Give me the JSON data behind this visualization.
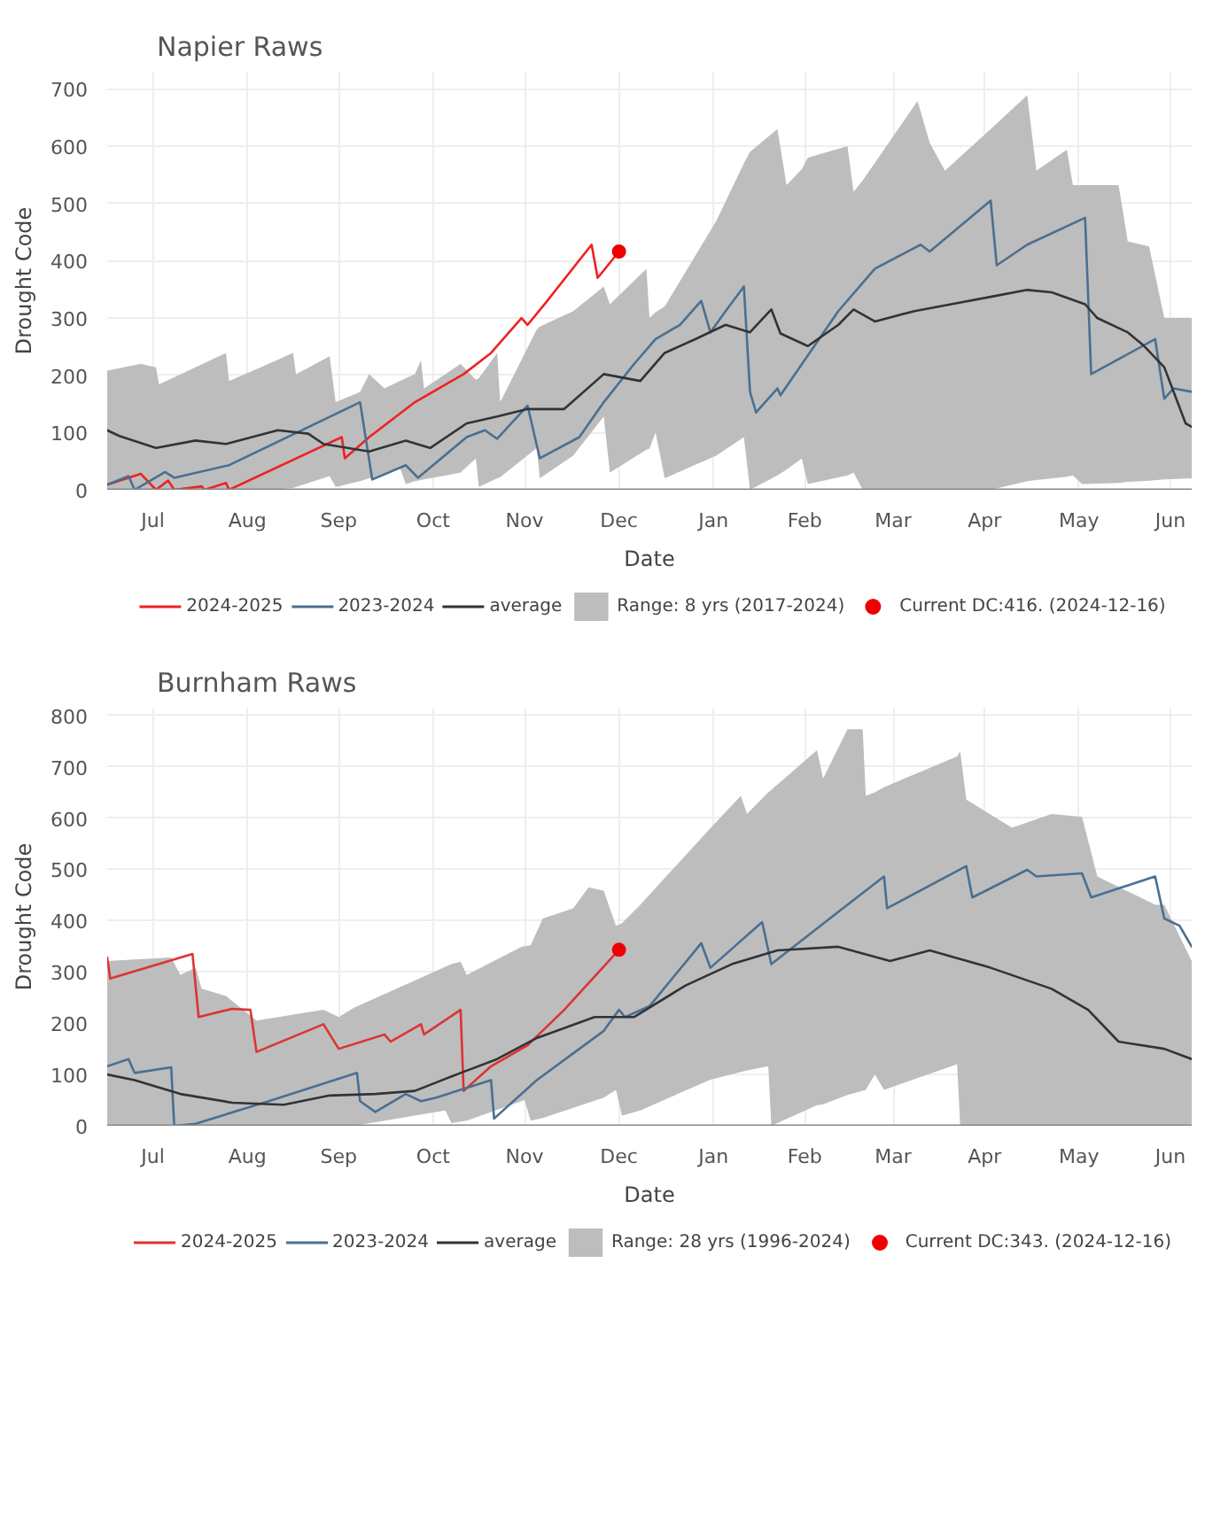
{
  "chart_data": [
    {
      "type": "line",
      "title": "Napier Raws",
      "xlabel": "Date",
      "ylabel": "Drought Code",
      "xlim": [
        "2024-07-01",
        "2025-06-22"
      ],
      "ylim": [
        0,
        730
      ],
      "yticks": [
        0,
        100,
        200,
        300,
        400,
        500,
        600,
        700
      ],
      "xticks": [
        {
          "value": "2024-07-16",
          "label": "Jul"
        },
        {
          "value": "2024-08-16",
          "label": "Aug"
        },
        {
          "value": "2024-09-15",
          "label": "Sep"
        },
        {
          "value": "2024-10-16",
          "label": "Oct"
        },
        {
          "value": "2024-11-15",
          "label": "Nov"
        },
        {
          "value": "2024-12-16",
          "label": "Dec"
        },
        {
          "value": "2025-01-16",
          "label": "Jan"
        },
        {
          "value": "2025-02-15",
          "label": "Feb"
        },
        {
          "value": "2025-03-16",
          "label": "Mar"
        },
        {
          "value": "2025-04-15",
          "label": "Apr"
        },
        {
          "value": "2025-05-16",
          "label": "May"
        },
        {
          "value": "2025-06-15",
          "label": "Jun"
        }
      ],
      "grid": true,
      "legend": "bottom",
      "line_style": "solid",
      "series": [
        {
          "name": "2024-2025",
          "type": "line",
          "color": "#ee2222",
          "x": [
            "2024-07-01",
            "2024-07-12",
            "2024-07-17",
            "2024-07-21",
            "2024-07-23",
            "2024-08-01",
            "2024-08-02",
            "2024-08-09",
            "2024-08-10",
            "2024-09-16",
            "2024-09-17",
            "2024-09-25",
            "2024-10-10",
            "2024-10-26",
            "2024-11-04",
            "2024-11-14",
            "2024-11-16",
            "2024-11-22",
            "2024-12-07",
            "2024-12-09",
            "2024-12-16"
          ],
          "values": [
            9,
            28,
            0,
            16,
            0,
            6,
            0,
            12,
            0,
            92,
            55,
            92,
            153,
            202,
            239,
            300,
            288,
            327,
            428,
            370,
            416
          ]
        },
        {
          "name": "2023-2024",
          "type": "line",
          "color": "#4a6f91",
          "x": [
            "2024-07-01",
            "2024-07-08",
            "2024-07-10",
            "2024-07-20",
            "2024-07-23",
            "2024-08-10",
            "2024-09-22",
            "2024-09-26",
            "2024-10-07",
            "2024-10-11",
            "2024-10-27",
            "2024-11-02",
            "2024-11-06",
            "2024-11-16",
            "2024-11-20",
            "2024-12-03",
            "2024-12-11",
            "2024-12-21",
            "2024-12-28",
            "2025-01-05",
            "2025-01-12",
            "2025-01-15",
            "2025-01-20",
            "2025-01-26",
            "2025-01-28",
            "2025-01-30",
            "2025-02-06",
            "2025-02-07",
            "2025-02-26",
            "2025-03-10",
            "2025-03-25",
            "2025-03-28",
            "2025-04-17",
            "2025-04-19",
            "2025-04-29",
            "2025-05-18",
            "2025-05-20",
            "2025-06-10",
            "2025-06-13",
            "2025-06-16",
            "2025-06-22"
          ],
          "values": [
            9,
            24,
            0,
            31,
            21,
            43,
            153,
            18,
            43,
            21,
            92,
            104,
            89,
            147,
            55,
            92,
            153,
            220,
            263,
            288,
            330,
            275,
            312,
            355,
            171,
            135,
            177,
            165,
            312,
            386,
            428,
            416,
            505,
            392,
            428,
            475,
            202,
            263,
            159,
            177,
            171
          ]
        },
        {
          "name": "average",
          "type": "line",
          "color": "#333333",
          "x": [
            "2024-07-01",
            "2024-07-05",
            "2024-07-17",
            "2024-07-30",
            "2024-08-09",
            "2024-08-26",
            "2024-09-05",
            "2024-09-10",
            "2024-09-25",
            "2024-10-07",
            "2024-10-15",
            "2024-10-27",
            "2024-11-06",
            "2024-11-16",
            "2024-11-28",
            "2024-12-11",
            "2024-12-23",
            "2024-12-31",
            "2025-01-10",
            "2025-01-20",
            "2025-01-28",
            "2025-02-04",
            "2025-02-07",
            "2025-02-16",
            "2025-02-26",
            "2025-03-03",
            "2025-03-10",
            "2025-03-23",
            "2025-04-04",
            "2025-04-17",
            "2025-04-29",
            "2025-05-07",
            "2025-05-18",
            "2025-05-22",
            "2025-06-01",
            "2025-06-06",
            "2025-06-13",
            "2025-06-20",
            "2025-06-22"
          ],
          "values": [
            104,
            94,
            73,
            86,
            80,
            104,
            98,
            80,
            67,
            86,
            73,
            116,
            128,
            141,
            141,
            202,
            190,
            239,
            263,
            288,
            275,
            315,
            273,
            251,
            288,
            315,
            294,
            312,
            324,
            337,
            349,
            345,
            324,
            300,
            275,
            253,
            214,
            116,
            110
          ]
        },
        {
          "name": "Range: 8 yrs\n(2017-2024)",
          "type": "area",
          "color": "#bdbdbd",
          "x": [
            "2024-07-01",
            "2024-07-12",
            "2024-07-17",
            "2024-07-18",
            "2024-08-09",
            "2024-08-10",
            "2024-08-23",
            "2024-08-31",
            "2024-09-01",
            "2024-09-12",
            "2024-09-14",
            "2024-09-22",
            "2024-09-25",
            "2024-09-30",
            "2024-10-05",
            "2024-10-07",
            "2024-10-10",
            "2024-10-12",
            "2024-10-13",
            "2024-10-25",
            "2024-10-30",
            "2024-10-31",
            "2024-11-06",
            "2024-11-07",
            "2024-11-19",
            "2024-11-20",
            "2024-12-01",
            "2024-12-11",
            "2024-12-13",
            "2024-12-25",
            "2024-12-26",
            "2024-12-28",
            "2024-12-31",
            "2025-01-17",
            "2025-01-26",
            "2025-01-28",
            "2025-02-06",
            "2025-02-09",
            "2025-02-14",
            "2025-02-16",
            "2025-03-01",
            "2025-03-03",
            "2025-03-06",
            "2025-03-24",
            "2025-03-28",
            "2025-04-02",
            "2025-04-17",
            "2025-04-29",
            "2025-05-02",
            "2025-05-12",
            "2025-05-14",
            "2025-05-17",
            "2025-05-29",
            "2025-06-01",
            "2025-06-08",
            "2025-06-13",
            "2025-06-22"
          ],
          "values": [
            null,
            null,
            null,
            null,
            null,
            null,
            null,
            null,
            null,
            null,
            null,
            null,
            null,
            null,
            null,
            null,
            null,
            null,
            null,
            null,
            null,
            null,
            null,
            null,
            null,
            null,
            null,
            null,
            null,
            null,
            null,
            null,
            null,
            null,
            null,
            null,
            null,
            null,
            null,
            null,
            null,
            null,
            null,
            null,
            null,
            null,
            null,
            null,
            null,
            null,
            null,
            null,
            null,
            null,
            null,
            null,
            null
          ],
          "lower": [
            0,
            0,
            0,
            0,
            0,
            0,
            0,
            3,
            5,
            24,
            5,
            15,
            20,
            25,
            40,
            10,
            15,
            17,
            18,
            30,
            55,
            5,
            20,
            22,
            73,
            20,
            60,
            128,
            30,
            70,
            72,
            100,
            20,
            60,
            92,
            0,
            25,
            35,
            55,
            10,
            25,
            30,
            0,
            0,
            0,
            0,
            0,
            15,
            17,
            23,
            25,
            10,
            12,
            14,
            16,
            18,
            20
          ],
          "upper": [
            208,
            220,
            214,
            184,
            239,
            190,
            220,
            239,
            202,
            233,
            153,
            171,
            202,
            177,
            190,
            195,
            202,
            226,
            177,
            220,
            192,
            195,
            239,
            153,
            280,
            285,
            312,
            355,
            324,
            386,
            300,
            310,
            320,
            470,
            570,
            590,
            630,
            532,
            560,
            580,
            600,
            520,
            540,
            679,
            606,
            557,
            630,
            689,
            557,
            594,
            532,
            532,
            532,
            434,
            425,
            300,
            300
          ]
        },
        {
          "name": "Current DC:416.\n(2024-12-16)",
          "type": "scatter",
          "marker": "circle",
          "color": "#ee0000",
          "x": [
            "2024-12-16"
          ],
          "values": [
            416
          ]
        }
      ]
    },
    {
      "type": "line",
      "title": "Burnham Raws",
      "xlabel": "Date",
      "ylabel": "Drought Code",
      "xlim": [
        "2024-07-01",
        "2025-06-22"
      ],
      "ylim": [
        0,
        815
      ],
      "yticks": [
        0,
        100,
        200,
        300,
        400,
        500,
        600,
        700,
        800
      ],
      "xticks": [
        {
          "value": "2024-07-16",
          "label": "Jul"
        },
        {
          "value": "2024-08-16",
          "label": "Aug"
        },
        {
          "value": "2024-09-15",
          "label": "Sep"
        },
        {
          "value": "2024-10-16",
          "label": "Oct"
        },
        {
          "value": "2024-11-15",
          "label": "Nov"
        },
        {
          "value": "2024-12-16",
          "label": "Dec"
        },
        {
          "value": "2025-01-16",
          "label": "Jan"
        },
        {
          "value": "2025-02-15",
          "label": "Feb"
        },
        {
          "value": "2025-03-16",
          "label": "Mar"
        },
        {
          "value": "2025-04-15",
          "label": "Apr"
        },
        {
          "value": "2025-05-16",
          "label": "May"
        },
        {
          "value": "2025-06-15",
          "label": "Jun"
        }
      ],
      "grid": true,
      "legend": "bottom",
      "line_style": "solid",
      "series": [
        {
          "name": "2024-2025",
          "type": "line",
          "color": "#dd3333",
          "x": [
            "2024-07-01",
            "2024-07-02",
            "2024-07-29",
            "2024-07-31",
            "2024-08-11",
            "2024-08-17",
            "2024-08-19",
            "2024-09-10",
            "2024-09-15",
            "2024-09-30",
            "2024-10-02",
            "2024-10-12",
            "2024-10-13",
            "2024-10-25",
            "2024-10-26",
            "2024-11-04",
            "2024-11-16",
            "2024-11-28",
            "2024-12-16"
          ],
          "values": [
            328,
            287,
            335,
            212,
            228,
            226,
            144,
            198,
            150,
            178,
            164,
            198,
            178,
            226,
            68,
            116,
            157,
            226,
            343
          ]
        },
        {
          "name": "2023-2024",
          "type": "line",
          "color": "#4a6f91",
          "x": [
            "2024-07-01",
            "2024-07-08",
            "2024-07-10",
            "2024-07-22",
            "2024-07-23",
            "2024-07-30",
            "2024-08-23",
            "2024-09-21",
            "2024-09-22",
            "2024-09-27",
            "2024-10-07",
            "2024-10-12",
            "2024-10-17",
            "2024-11-04",
            "2024-11-05",
            "2024-11-19",
            "2024-12-03",
            "2024-12-11",
            "2024-12-16",
            "2024-12-18",
            "2024-12-26",
            "2025-01-12",
            "2025-01-15",
            "2025-02-01",
            "2025-02-04",
            "2025-02-26",
            "2025-03-13",
            "2025-03-14",
            "2025-04-09",
            "2025-04-11",
            "2025-04-29",
            "2025-05-02",
            "2025-05-17",
            "2025-05-20",
            "2025-06-10",
            "2025-06-13",
            "2025-06-18",
            "2025-06-22"
          ],
          "values": [
            116,
            130,
            103,
            114,
            0,
            4,
            48,
            103,
            48,
            27,
            62,
            48,
            55,
            89,
            14,
            89,
            150,
            185,
            226,
            212,
            233,
            356,
            308,
            397,
            315,
            417,
            486,
            424,
            506,
            445,
            499,
            486,
            492,
            445,
            486,
            404,
            390,
            349
          ]
        },
        {
          "name": "average",
          "type": "line",
          "color": "#333333",
          "x": [
            "2024-07-01",
            "2024-07-10",
            "2024-07-25",
            "2024-08-11",
            "2024-08-28",
            "2024-09-12",
            "2024-09-27",
            "2024-10-10",
            "2024-10-25",
            "2024-11-06",
            "2024-11-19",
            "2024-12-08",
            "2024-12-21",
            "2025-01-07",
            "2025-01-22",
            "2025-02-06",
            "2025-02-26",
            "2025-03-15",
            "2025-03-28",
            "2025-04-17",
            "2025-05-07",
            "2025-05-19",
            "2025-05-29",
            "2025-06-13",
            "2025-06-22"
          ],
          "values": [
            100,
            89,
            62,
            45,
            41,
            59,
            62,
            68,
            103,
            130,
            171,
            212,
            212,
            274,
            315,
            342,
            349,
            321,
            342,
            308,
            267,
            226,
            164,
            150,
            130
          ]
        },
        {
          "name": "Range: 28 yrs\n(1996-2024)",
          "type": "area",
          "color": "#bdbdbd",
          "x": [
            "2024-07-01",
            "2024-07-22",
            "2024-07-25",
            "2024-07-30",
            "2024-08-01",
            "2024-08-09",
            "2024-08-19",
            "2024-09-10",
            "2024-09-15",
            "2024-09-20",
            "2024-10-20",
            "2024-10-22",
            "2024-10-25",
            "2024-10-27",
            "2024-11-14",
            "2024-11-15",
            "2024-11-17",
            "2024-11-21",
            "2024-12-01",
            "2024-12-06",
            "2024-12-11",
            "2024-12-15",
            "2024-12-17",
            "2024-12-23",
            "2025-01-15",
            "2025-01-25",
            "2025-01-27",
            "2025-02-03",
            "2025-02-04",
            "2025-02-19",
            "2025-02-21",
            "2025-03-01",
            "2025-03-06",
            "2025-03-07",
            "2025-03-10",
            "2025-03-13",
            "2025-04-06",
            "2025-04-07",
            "2025-04-09",
            "2025-04-24",
            "2025-05-07",
            "2025-05-17",
            "2025-05-22",
            "2025-06-10",
            "2025-06-13",
            "2025-06-22"
          ],
          "values": [
            null,
            null,
            null,
            null,
            null,
            null,
            null,
            null,
            null,
            null,
            null,
            null,
            null,
            null,
            null,
            null,
            null,
            null,
            null,
            null,
            null,
            null,
            null,
            null,
            null,
            null,
            null,
            null,
            null,
            null,
            null,
            null,
            null,
            null,
            null,
            null,
            null,
            null,
            null,
            null,
            null,
            null,
            null,
            null,
            null,
            null
          ],
          "lower": [
            0,
            0,
            0,
            0,
            0,
            0,
            0,
            0,
            0,
            0,
            30,
            5,
            8,
            10,
            48,
            50,
            10,
            15,
            35,
            45,
            55,
            70,
            20,
            30,
            90,
            105,
            108,
            116,
            0,
            40,
            42,
            60,
            68,
            70,
            100,
            70,
            120,
            0,
            0,
            0,
            0,
            0,
            0,
            0,
            0,
            0
          ],
          "upper": [
            321,
            328,
            294,
            308,
            267,
            253,
            205,
            226,
            212,
            230,
            310,
            315,
            320,
            294,
            349,
            350,
            352,
            404,
            424,
            465,
            458,
            390,
            395,
            431,
            580,
            643,
            608,
            650,
            655,
            732,
            677,
            773,
            773,
            643,
            650,
            660,
            720,
            730,
            636,
            581,
            608,
            602,
            486,
            431,
            431,
            321
          ]
        },
        {
          "name": "Current DC:343.\n(2024-12-16)",
          "type": "scatter",
          "marker": "circle",
          "color": "#ee0000",
          "x": [
            "2024-12-16"
          ],
          "values": [
            343
          ]
        }
      ]
    }
  ]
}
